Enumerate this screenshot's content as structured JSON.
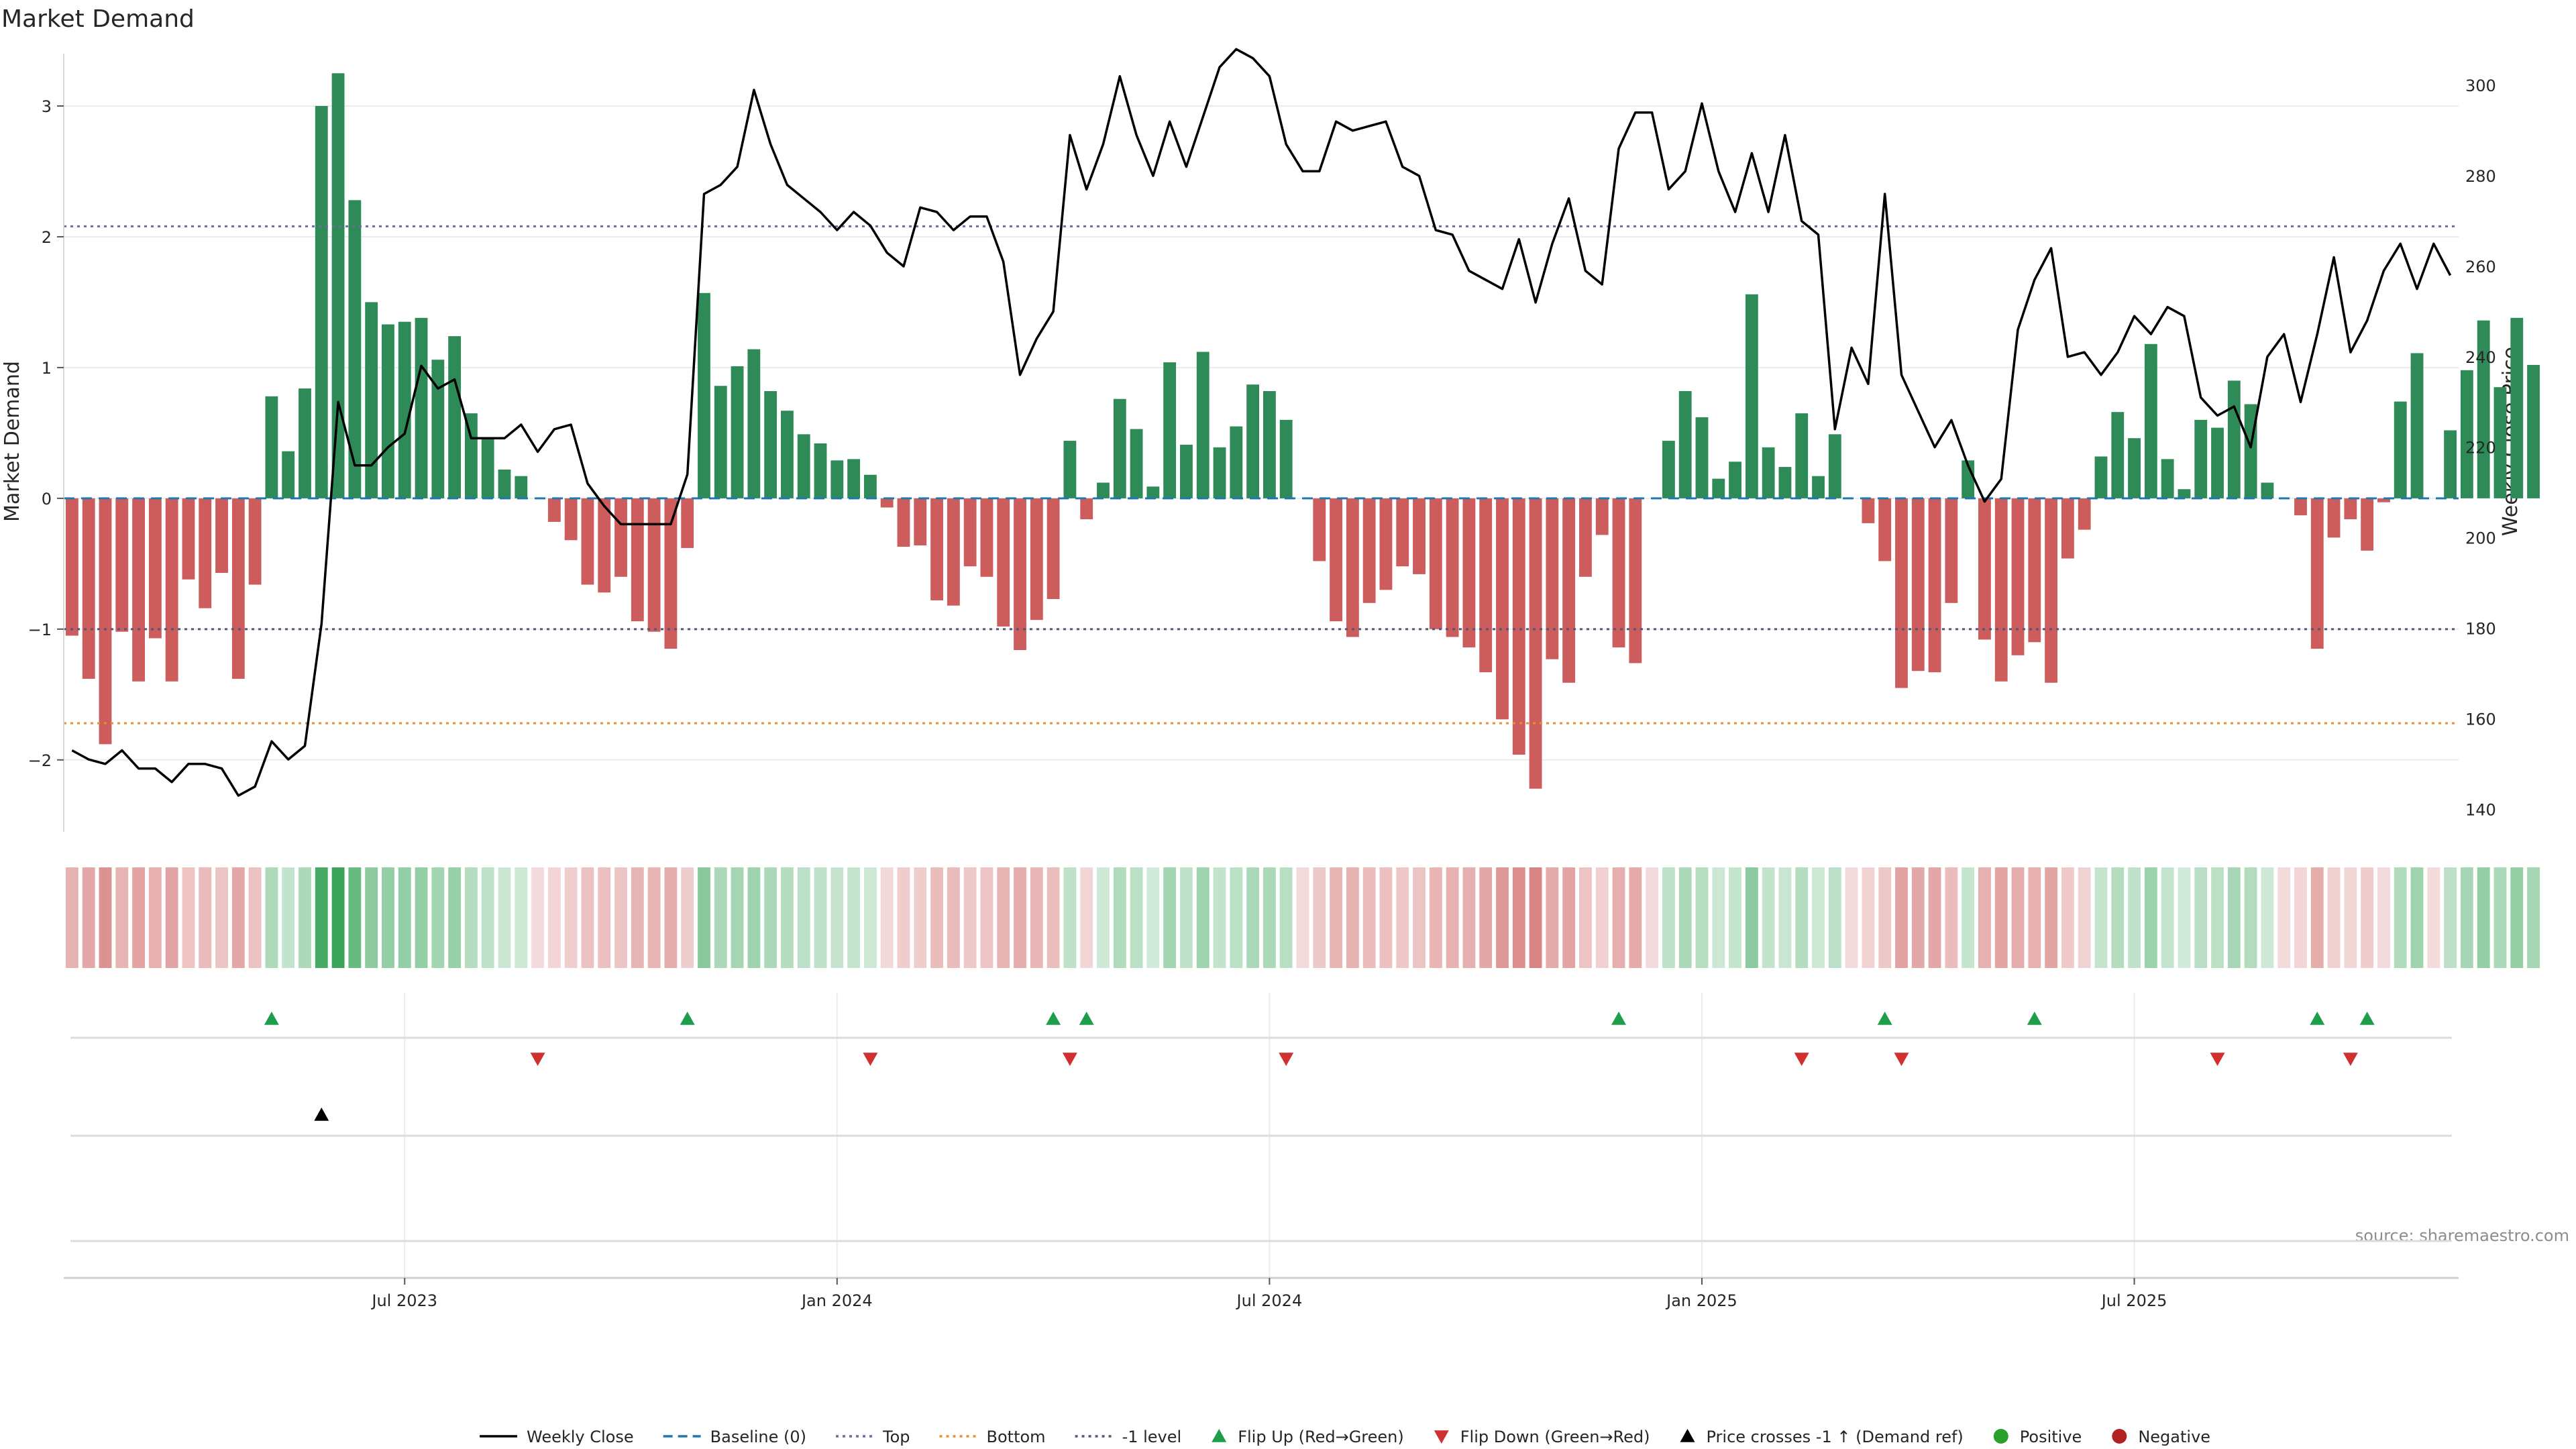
{
  "chart_data": {
    "type": "bar+line",
    "title": "Market Demand",
    "ylabel_left": "Market Demand",
    "ylabel_right": "Weekly Close Price",
    "ylim_left": [
      -2.55,
      3.4
    ],
    "ylim_right": [
      135,
      307
    ],
    "yticks_left": [
      -2,
      -1,
      0,
      1,
      2,
      3
    ],
    "yticks_left_labels": [
      "−2",
      "−1",
      "0",
      "1",
      "2",
      "3"
    ],
    "yticks_right": [
      140,
      160,
      180,
      200,
      220,
      240,
      260,
      280,
      300
    ],
    "x_date_labels": [
      "Jul 2023",
      "Jan 2024",
      "Jul 2024",
      "Jan 2025",
      "Jul 2025"
    ],
    "x_date_label_weeks": [
      20,
      46,
      72,
      98,
      124
    ],
    "n_weeks": 144,
    "demand": [
      -1.05,
      -1.38,
      -1.88,
      -1.02,
      -1.4,
      -1.07,
      -1.4,
      -0.62,
      -0.84,
      -0.57,
      -1.38,
      -0.66,
      0.78,
      0.36,
      0.84,
      3.0,
      3.25,
      2.28,
      1.5,
      1.33,
      1.35,
      1.38,
      1.06,
      1.24,
      0.65,
      0.46,
      0.22,
      0.17,
      0.0,
      -0.18,
      -0.32,
      -0.66,
      -0.72,
      -0.6,
      -0.94,
      -1.02,
      -1.15,
      -0.38,
      1.57,
      0.86,
      1.01,
      1.14,
      0.82,
      0.67,
      0.49,
      0.42,
      0.29,
      0.3,
      0.18,
      -0.07,
      -0.37,
      -0.36,
      -0.78,
      -0.82,
      -0.52,
      -0.6,
      -0.98,
      -1.16,
      -0.93,
      -0.77,
      0.44,
      -0.16,
      0.12,
      0.76,
      0.53,
      0.09,
      1.04,
      0.41,
      1.12,
      0.39,
      0.55,
      0.87,
      0.82,
      0.6,
      0.0,
      -0.48,
      -0.94,
      -1.06,
      -0.8,
      -0.7,
      -0.52,
      -0.58,
      -1.0,
      -1.06,
      -1.14,
      -1.33,
      -1.69,
      -1.96,
      -2.22,
      -1.23,
      -1.41,
      -0.6,
      -0.28,
      -1.14,
      -1.26,
      0.0,
      0.44,
      0.82,
      0.62,
      0.15,
      0.28,
      1.56,
      0.39,
      0.24,
      0.65,
      0.17,
      0.49,
      0.0,
      -0.19,
      -0.48,
      -1.45,
      -1.32,
      -1.33,
      -0.8,
      0.29,
      -1.08,
      -1.4,
      -1.2,
      -1.1,
      -1.41,
      -0.46,
      -0.24,
      0.32,
      0.66,
      0.46,
      1.18,
      0.3,
      0.07,
      0.6,
      0.54,
      0.9,
      0.72,
      0.12,
      0.0,
      -0.13,
      -1.15,
      -0.3,
      -0.16,
      -0.4,
      -0.03,
      0.74,
      1.11,
      0.0,
      0.52,
      0.98,
      1.36,
      0.85,
      1.38,
      1.02
    ],
    "price": [
      153,
      151,
      150,
      153,
      149,
      149,
      146,
      150,
      150,
      149,
      143,
      145,
      155,
      151,
      154,
      181,
      230,
      216,
      216,
      220,
      223,
      238,
      233,
      235,
      222,
      222,
      222,
      225,
      219,
      224,
      225,
      212,
      207,
      203,
      203,
      203,
      203,
      214,
      276,
      278,
      282,
      299,
      287,
      278,
      275,
      272,
      268,
      272,
      269,
      263,
      260,
      273,
      272,
      268,
      271,
      271,
      261,
      236,
      244,
      250,
      289,
      277,
      287,
      302,
      289,
      280,
      292,
      282,
      293,
      304,
      308,
      306,
      302,
      287,
      281,
      281,
      292,
      290,
      291,
      292,
      282,
      280,
      268,
      267,
      259,
      257,
      255,
      266,
      252,
      265,
      275,
      259,
      256,
      286,
      294,
      294,
      277,
      281,
      296,
      281,
      272,
      285,
      272,
      289,
      270,
      267,
      224,
      242,
      234,
      276,
      236,
      228,
      220,
      226,
      216,
      208,
      213,
      246,
      257,
      264,
      240,
      241,
      236,
      241,
      249,
      245,
      251,
      249,
      231,
      227,
      229,
      220,
      240,
      245,
      230,
      245,
      262,
      241,
      248,
      259,
      265,
      255,
      265,
      258
    ],
    "top_level": 2.08,
    "bottom_level": -1.72,
    "minus1_level": -1.0,
    "baseline": 0,
    "flip_up_weeks": [
      12,
      37,
      59,
      61,
      93,
      109,
      118,
      135,
      138
    ],
    "flip_down_weeks": [
      28,
      48,
      60,
      73,
      104,
      110,
      129,
      137
    ],
    "price_cross_weeks": [
      15
    ],
    "colors": {
      "positive": "#2e8b57",
      "negative": "#cd5c5c",
      "price_line": "#000000",
      "baseline": "#1f77b4",
      "top": "#6c6c9e",
      "bottom": "#e8902e",
      "minus1": "#555577",
      "flip_up": "#1e9e4a",
      "flip_down": "#d03030",
      "cross": "#000000",
      "grid": "#ececec",
      "positive_dot": "#2ca02c",
      "negative_dot": "#b22222"
    },
    "legend": [
      {
        "key": "weekly-close",
        "label": "Weekly Close",
        "symbol": "line"
      },
      {
        "key": "baseline",
        "label": "Baseline (0)",
        "symbol": "dash"
      },
      {
        "key": "top",
        "label": "Top",
        "symbol": "dot"
      },
      {
        "key": "bottom",
        "label": "Bottom",
        "symbol": "dot"
      },
      {
        "key": "minus1",
        "label": "-1 level",
        "symbol": "dot"
      },
      {
        "key": "flip-up",
        "label": "Flip Up (Red→Green)",
        "symbol": "tri-up"
      },
      {
        "key": "flip-down",
        "label": "Flip Down (Green→Red)",
        "symbol": "tri-down"
      },
      {
        "key": "price-cross",
        "label": "Price crosses -1 ↑ (Demand ref)",
        "symbol": "tri-up-black"
      },
      {
        "key": "positive",
        "label": "Positive",
        "symbol": "circle"
      },
      {
        "key": "negative",
        "label": "Negative",
        "symbol": "circle"
      }
    ],
    "source": "source: sharemaestro.com"
  }
}
